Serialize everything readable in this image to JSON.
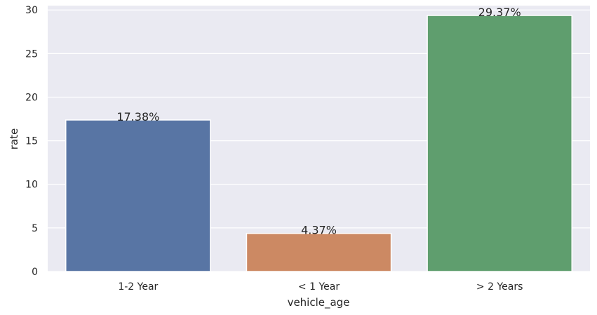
{
  "chart_data": {
    "type": "bar",
    "categories": [
      "1-2 Year",
      "< 1 Year",
      "> 2 Years"
    ],
    "values": [
      17.38,
      4.37,
      29.37
    ],
    "value_labels": [
      "17.38%",
      "4.37%",
      "29.37%"
    ],
    "colors": [
      "#5875a4",
      "#cc8963",
      "#5f9e6e"
    ],
    "xlabel": "vehicle_age",
    "ylabel": "rate",
    "ylim": [
      0,
      30.5
    ],
    "yticks": [
      0,
      5,
      10,
      15,
      20,
      25,
      30
    ],
    "grid": true,
    "background": "#eaeaf2"
  }
}
